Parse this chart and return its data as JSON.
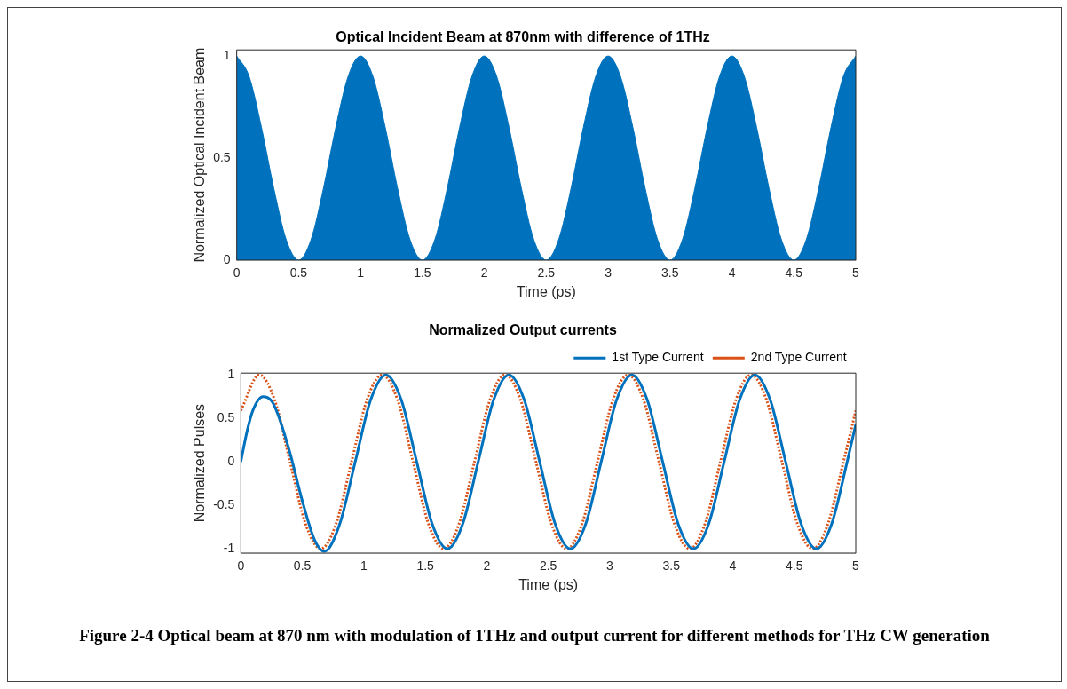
{
  "chart_data": [
    {
      "type": "area",
      "title": "Optical Incident Beam at 870nm with difference of 1THz",
      "xlabel": "Time (ps)",
      "ylabel": "Normalized Optical Incident Beam",
      "xlim": [
        0,
        5
      ],
      "xticks": [
        0,
        0.5,
        1,
        1.5,
        2,
        2.5,
        3,
        3.5,
        4,
        4.5,
        5
      ],
      "ylim": [
        0,
        1.03
      ],
      "yticks": [
        0,
        0.5,
        1
      ],
      "grid": false,
      "legend": false,
      "marker": "none",
      "series": [
        {
          "color": "#0072bd",
          "x": [
            0,
            0.1,
            0.2,
            0.3,
            0.4,
            0.5,
            0.6,
            0.7,
            0.8,
            0.9,
            1,
            1.1,
            1.2,
            1.3,
            1.4,
            1.5,
            1.6,
            1.7,
            1.8,
            1.9,
            2,
            2.1,
            2.2,
            2.3,
            2.4,
            2.5,
            2.6,
            2.7,
            2.8,
            2.9,
            3,
            3.1,
            3.2,
            3.3,
            3.4,
            3.5,
            3.6,
            3.7,
            3.8,
            3.9,
            4,
            4.1,
            4.2,
            4.3,
            4.4,
            4.5,
            4.6,
            4.7,
            4.8,
            4.9,
            5
          ],
          "values": [
            1,
            0.9,
            0.65,
            0.35,
            0.1,
            0,
            0.1,
            0.35,
            0.65,
            0.9,
            1,
            0.9,
            0.65,
            0.35,
            0.1,
            0,
            0.1,
            0.35,
            0.65,
            0.9,
            1,
            0.9,
            0.65,
            0.35,
            0.1,
            0,
            0.1,
            0.35,
            0.65,
            0.9,
            1,
            0.9,
            0.65,
            0.35,
            0.1,
            0,
            0.1,
            0.35,
            0.65,
            0.9,
            1,
            0.9,
            0.65,
            0.35,
            0.1,
            0,
            0.1,
            0.35,
            0.65,
            0.9,
            1
          ]
        }
      ]
    },
    {
      "type": "line",
      "title": "Normalized Output currents",
      "xlabel": "Time (ps)",
      "ylabel": "Normalized Pulses",
      "xlim": [
        0,
        5
      ],
      "xticks": [
        0,
        0.5,
        1,
        1.5,
        2,
        2.5,
        3,
        3.5,
        4,
        4.5,
        5
      ],
      "ylim": [
        -1.05,
        1.02
      ],
      "yticks": [
        -1,
        -0.5,
        0,
        0.5,
        1
      ],
      "grid": false,
      "legend": "top right",
      "marker": "none",
      "annotations": [
        "Figure 2-4 Optical beam at 870 nm with modulation of 1THz and output current for different methods for THz CW generation"
      ],
      "series": [
        {
          "name": "1st Type Current",
          "color": "#0072bd",
          "line_style": "solid",
          "x": [
            0,
            0.05,
            0.1,
            0.18,
            0.25,
            0.3,
            0.4,
            0.5,
            0.6,
            0.68,
            0.805,
            0.93,
            1.055,
            1.18,
            1.305,
            1.43,
            1.555,
            1.68,
            1.805,
            1.93,
            2.055,
            2.18,
            2.305,
            2.43,
            2.555,
            2.68,
            2.805,
            2.93,
            3.055,
            3.18,
            3.305,
            3.43,
            3.555,
            3.68,
            3.805,
            3.93,
            4.055,
            4.18,
            4.305,
            4.43,
            4.555,
            4.68,
            4.805,
            4.93,
            5
          ],
          "values": [
            0,
            0.35,
            0.6,
            0.75,
            0.7,
            0.55,
            0.1,
            -0.45,
            -0.9,
            -1.03,
            -0.71,
            0,
            0.71,
            1,
            0.71,
            0,
            -0.71,
            -1,
            -0.71,
            0,
            0.71,
            1,
            0.71,
            0,
            -0.71,
            -1,
            -0.71,
            0,
            0.71,
            1,
            0.71,
            0,
            -0.71,
            -1,
            -0.71,
            0,
            0.71,
            1,
            0.71,
            0,
            -0.71,
            -1,
            -0.71,
            0,
            0.43
          ]
        },
        {
          "name": "2nd Type Current",
          "color": "#d95319",
          "line_style": "dotted",
          "x": [
            0,
            0.15,
            0.275,
            0.4,
            0.525,
            0.65,
            0.775,
            0.9,
            1.025,
            1.15,
            1.275,
            1.4,
            1.525,
            1.65,
            1.775,
            1.9,
            2.025,
            2.15,
            2.275,
            2.4,
            2.525,
            2.65,
            2.775,
            2.9,
            3.025,
            3.15,
            3.275,
            3.4,
            3.525,
            3.65,
            3.775,
            3.9,
            4.025,
            4.15,
            4.275,
            4.4,
            4.525,
            4.65,
            4.775,
            4.9,
            5
          ],
          "values": [
            0.59,
            1,
            0.71,
            0,
            -0.71,
            -1,
            -0.71,
            0,
            0.71,
            1,
            0.71,
            0,
            -0.71,
            -1,
            -0.71,
            0,
            0.71,
            1,
            0.71,
            0,
            -0.71,
            -1,
            -0.71,
            0,
            0.71,
            1,
            0.71,
            0,
            -0.71,
            -1,
            -0.71,
            0,
            0.71,
            1,
            0.71,
            0,
            -0.71,
            -1,
            -0.71,
            0,
            0.59
          ]
        }
      ]
    }
  ]
}
